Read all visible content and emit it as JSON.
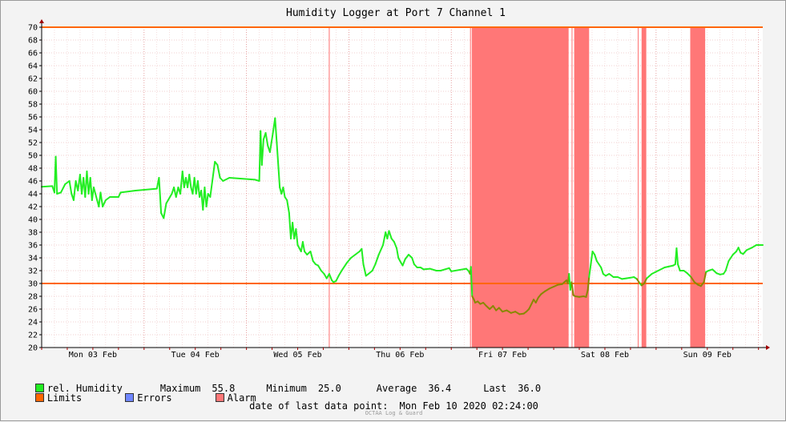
{
  "chart_data": {
    "type": "line",
    "title": "Humidity Logger at Port 7 Channel 1",
    "ylim": [
      20,
      70
    ],
    "y_ticks": [
      20,
      22,
      24,
      26,
      28,
      30,
      32,
      34,
      36,
      38,
      40,
      42,
      44,
      46,
      48,
      50,
      52,
      54,
      56,
      58,
      60,
      62,
      64,
      66,
      68,
      70
    ],
    "xlim_hours": [
      0,
      169
    ],
    "x_tick_labels": [
      {
        "label": "Mon 03 Feb",
        "hour": 12
      },
      {
        "label": "Tue 04 Feb",
        "hour": 36
      },
      {
        "label": "Wed 05 Feb",
        "hour": 60
      },
      {
        "label": "Thu 06 Feb",
        "hour": 84
      },
      {
        "label": "Fri 07 Feb",
        "hour": 108
      },
      {
        "label": "Sat 08 Feb",
        "hour": 132
      },
      {
        "label": "Sun 09 Feb",
        "hour": 156
      }
    ],
    "limits": {
      "upper": 70,
      "lower": 30
    },
    "alarm_periods_hours": [
      [
        67.3,
        67.5
      ],
      [
        100.4,
        100.6
      ],
      [
        100.8,
        123.5
      ],
      [
        124.2,
        124.4
      ],
      [
        124.8,
        128.3
      ],
      [
        139.7,
        139.9
      ],
      [
        140.6,
        141.7
      ],
      [
        152.0,
        155.5
      ]
    ],
    "series": [
      {
        "name": "rel. Humidity",
        "color": "#22ee22",
        "alarm_color": "#888800",
        "points": [
          [
            0,
            45.1
          ],
          [
            2.5,
            45.2
          ],
          [
            3,
            44.2
          ],
          [
            3.3,
            49.8
          ],
          [
            3.6,
            44.0
          ],
          [
            4.5,
            44.2
          ],
          [
            5.5,
            45.5
          ],
          [
            6.5,
            46.0
          ],
          [
            7,
            44.0
          ],
          [
            7.5,
            43.0
          ],
          [
            8,
            46.0
          ],
          [
            8.5,
            44.5
          ],
          [
            9,
            47.0
          ],
          [
            9.4,
            44.0
          ],
          [
            9.8,
            46.5
          ],
          [
            10.2,
            43.5
          ],
          [
            10.6,
            47.5
          ],
          [
            11,
            44.0
          ],
          [
            11.4,
            46.5
          ],
          [
            11.8,
            43.0
          ],
          [
            12.2,
            45.0
          ],
          [
            12.6,
            44.0
          ],
          [
            13,
            43.0
          ],
          [
            13.4,
            42.0
          ],
          [
            13.8,
            44.2
          ],
          [
            14.3,
            42.0
          ],
          [
            15,
            43.0
          ],
          [
            16,
            43.5
          ],
          [
            18,
            43.5
          ],
          [
            18.5,
            44.2
          ],
          [
            22,
            44.5
          ],
          [
            27,
            44.8
          ],
          [
            27.5,
            46.5
          ],
          [
            28,
            41.0
          ],
          [
            28.6,
            40.2
          ],
          [
            29.2,
            42.5
          ],
          [
            30.5,
            44.0
          ],
          [
            31,
            45.0
          ],
          [
            31.5,
            43.5
          ],
          [
            32,
            45.0
          ],
          [
            32.5,
            44.0
          ],
          [
            33,
            47.5
          ],
          [
            33.4,
            45.0
          ],
          [
            33.8,
            46.5
          ],
          [
            34.2,
            45.0
          ],
          [
            34.6,
            47.0
          ],
          [
            35,
            45.0
          ],
          [
            35.4,
            44.0
          ],
          [
            35.8,
            46.5
          ],
          [
            36.2,
            44.0
          ],
          [
            36.6,
            46.0
          ],
          [
            37,
            43.5
          ],
          [
            37.4,
            44.5
          ],
          [
            37.8,
            41.5
          ],
          [
            38.2,
            45.0
          ],
          [
            38.6,
            42.0
          ],
          [
            39,
            44.0
          ],
          [
            39.5,
            43.5
          ],
          [
            40,
            46.0
          ],
          [
            40.6,
            49.0
          ],
          [
            41.2,
            48.5
          ],
          [
            41.8,
            46.5
          ],
          [
            42.5,
            46.0
          ],
          [
            44,
            46.5
          ],
          [
            50,
            46.2
          ],
          [
            51,
            46.0
          ],
          [
            51.3,
            53.8
          ],
          [
            51.6,
            48.5
          ],
          [
            52,
            52.5
          ],
          [
            52.5,
            53.5
          ],
          [
            53,
            51.5
          ],
          [
            53.5,
            50.5
          ],
          [
            54.2,
            53.5
          ],
          [
            54.7,
            55.8
          ],
          [
            55.1,
            52.0
          ],
          [
            55.5,
            48.0
          ],
          [
            55.8,
            45.0
          ],
          [
            56.2,
            44.0
          ],
          [
            56.6,
            45.0
          ],
          [
            57,
            43.5
          ],
          [
            57.5,
            43.0
          ],
          [
            58,
            41.0
          ],
          [
            58.4,
            37.0
          ],
          [
            58.8,
            39.5
          ],
          [
            59.2,
            37.0
          ],
          [
            59.6,
            38.5
          ],
          [
            60,
            36.0
          ],
          [
            60.4,
            35.5
          ],
          [
            60.8,
            35.0
          ],
          [
            61.2,
            36.5
          ],
          [
            61.6,
            35.0
          ],
          [
            62.2,
            34.5
          ],
          [
            63,
            35.0
          ],
          [
            63.6,
            33.5
          ],
          [
            64.2,
            33.0
          ],
          [
            64.8,
            32.8
          ],
          [
            65.5,
            32.0
          ],
          [
            66.2,
            31.5
          ],
          [
            66.8,
            30.8
          ],
          [
            67.4,
            31.5
          ],
          [
            68,
            30.5
          ],
          [
            68.4,
            30.2
          ],
          [
            69,
            30.4
          ],
          [
            69.6,
            31.2
          ],
          [
            70.5,
            32.2
          ],
          [
            71.5,
            33.2
          ],
          [
            72.5,
            34.0
          ],
          [
            73.5,
            34.5
          ],
          [
            74.5,
            35.0
          ],
          [
            75,
            35.4
          ],
          [
            75.4,
            33.0
          ],
          [
            76,
            31.2
          ],
          [
            76.6,
            31.5
          ],
          [
            77.5,
            32.0
          ],
          [
            78.2,
            33.0
          ],
          [
            79,
            34.5
          ],
          [
            80,
            36.0
          ],
          [
            80.6,
            38.0
          ],
          [
            81,
            37.0
          ],
          [
            81.4,
            38.2
          ],
          [
            82,
            37.0
          ],
          [
            82.6,
            36.5
          ],
          [
            83.2,
            35.5
          ],
          [
            83.6,
            34.0
          ],
          [
            84,
            33.5
          ],
          [
            84.6,
            32.8
          ],
          [
            85.2,
            33.8
          ],
          [
            86,
            34.5
          ],
          [
            86.8,
            34.0
          ],
          [
            87.3,
            33.0
          ],
          [
            88,
            32.5
          ],
          [
            88.8,
            32.5
          ],
          [
            89.5,
            32.2
          ],
          [
            91,
            32.3
          ],
          [
            92.5,
            32.0
          ],
          [
            93.5,
            32.0
          ],
          [
            95.5,
            32.4
          ],
          [
            96,
            31.9
          ],
          [
            99.5,
            32.3
          ],
          [
            100,
            32.0
          ],
          [
            100.4,
            31.5
          ],
          [
            100.6,
            32.6
          ],
          [
            100.9,
            28.0
          ],
          [
            101.3,
            27.5
          ],
          [
            101.6,
            27.0
          ],
          [
            102.2,
            27.2
          ],
          [
            102.8,
            26.8
          ],
          [
            103.5,
            27.0
          ],
          [
            104.2,
            26.5
          ],
          [
            105,
            26.0
          ],
          [
            105.8,
            26.5
          ],
          [
            106.5,
            25.8
          ],
          [
            107.2,
            26.2
          ],
          [
            108,
            25.6
          ],
          [
            109,
            25.8
          ],
          [
            110,
            25.4
          ],
          [
            111,
            25.6
          ],
          [
            112,
            25.2
          ],
          [
            113,
            25.3
          ],
          [
            113.6,
            25.6
          ],
          [
            114.2,
            26.0
          ],
          [
            114.8,
            26.8
          ],
          [
            115.3,
            27.5
          ],
          [
            115.8,
            27.0
          ],
          [
            116.4,
            27.8
          ],
          [
            117,
            28.3
          ],
          [
            118,
            28.8
          ],
          [
            119,
            29.2
          ],
          [
            120,
            29.5
          ],
          [
            121,
            29.8
          ],
          [
            122,
            29.9
          ],
          [
            122.5,
            30.2
          ],
          [
            123,
            30.5
          ],
          [
            123.3,
            30.0
          ],
          [
            123.6,
            31.5
          ],
          [
            123.9,
            29.0
          ],
          [
            124.2,
            30.2
          ],
          [
            124.6,
            28.2
          ],
          [
            125,
            28.0
          ],
          [
            126,
            27.9
          ],
          [
            127,
            28.0
          ],
          [
            127.6,
            27.9
          ],
          [
            128,
            29.0
          ],
          [
            128.3,
            31.0
          ],
          [
            128.7,
            33.0
          ],
          [
            129.1,
            35.0
          ],
          [
            129.6,
            34.5
          ],
          [
            130.1,
            33.5
          ],
          [
            130.6,
            33.0
          ],
          [
            131.1,
            32.5
          ],
          [
            131.6,
            31.5
          ],
          [
            132.2,
            31.2
          ],
          [
            133,
            31.5
          ],
          [
            134,
            31.0
          ],
          [
            135,
            31.0
          ],
          [
            136,
            30.7
          ],
          [
            137,
            30.8
          ],
          [
            138,
            30.9
          ],
          [
            138.8,
            31.0
          ],
          [
            139.5,
            30.7
          ],
          [
            140.2,
            30.0
          ],
          [
            140.6,
            29.7
          ],
          [
            141.2,
            30.0
          ],
          [
            141.8,
            30.8
          ],
          [
            143,
            31.5
          ],
          [
            144.5,
            32.0
          ],
          [
            146,
            32.5
          ],
          [
            148,
            32.8
          ],
          [
            148.5,
            33.0
          ],
          [
            148.8,
            35.5
          ],
          [
            149.1,
            33.0
          ],
          [
            149.6,
            32.0
          ],
          [
            150.5,
            32.0
          ],
          [
            151.3,
            31.6
          ],
          [
            152.2,
            31.0
          ],
          [
            153,
            30.2
          ],
          [
            153.8,
            29.8
          ],
          [
            154.5,
            29.6
          ],
          [
            155.2,
            30.2
          ],
          [
            155.7,
            31.8
          ],
          [
            156.3,
            32.0
          ],
          [
            157.2,
            32.2
          ],
          [
            158.2,
            31.6
          ],
          [
            159,
            31.4
          ],
          [
            159.8,
            31.5
          ],
          [
            160.3,
            32.0
          ],
          [
            161,
            33.5
          ],
          [
            162,
            34.5
          ],
          [
            162.8,
            35.0
          ],
          [
            163.3,
            35.6
          ],
          [
            163.8,
            34.8
          ],
          [
            164.4,
            34.6
          ],
          [
            165.2,
            35.2
          ],
          [
            166.5,
            35.6
          ],
          [
            167.5,
            36.0
          ],
          [
            169,
            36.0
          ]
        ]
      }
    ],
    "legend": {
      "humidity_label": "rel. Humidity",
      "maximum_label": "Maximum",
      "maximum": "55.8",
      "minimum_label": "Minimum",
      "minimum": "25.0",
      "average_label": "Average",
      "average": "36.4",
      "last_label": "Last",
      "last": "36.0",
      "limits_label": "Limits",
      "errors_label": "Errors",
      "alarm_label": "Alarm"
    },
    "colors": {
      "humidity": "#22ee22",
      "limits": "#ff6600",
      "errors": "#6f86ff",
      "alarm": "#ff7777"
    }
  },
  "footer": {
    "last_point_label": "date of last data point:",
    "last_point_value": "Mon Feb 10 2020 02:24:00",
    "watermark": "OCTAA Log & Guard"
  }
}
